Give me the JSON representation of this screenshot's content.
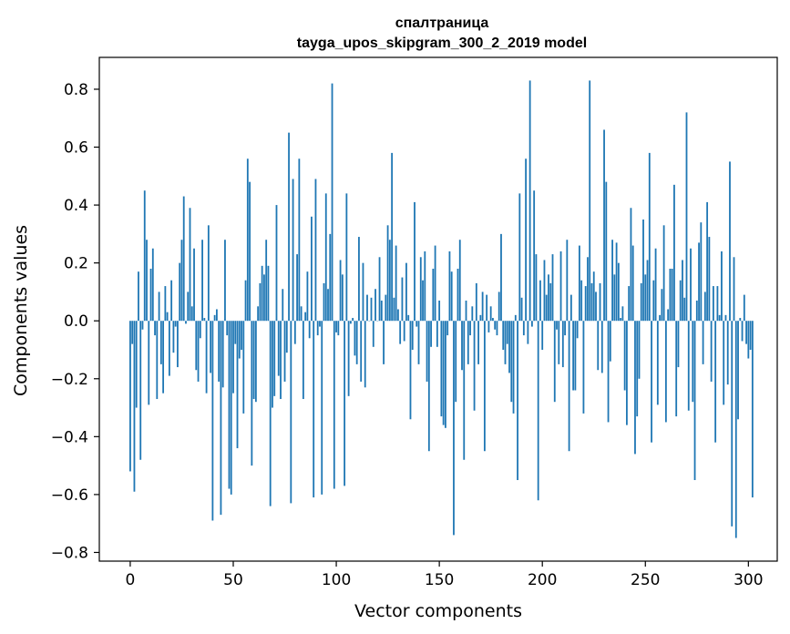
{
  "chart_data": {
    "type": "bar",
    "title_line1": "спалтраница",
    "title_line2": "tayga_upos_skipgram_300_2_2019 model",
    "xlabel": "Vector components",
    "ylabel": "Components values",
    "xlim": [
      -15,
      314
    ],
    "ylim": [
      -0.83,
      0.91
    ],
    "xticks": [
      0,
      50,
      100,
      150,
      200,
      250,
      300
    ],
    "xtick_labels": [
      "0",
      "50",
      "100",
      "150",
      "200",
      "250",
      "300"
    ],
    "yticks": [
      -0.8,
      -0.6,
      -0.4,
      -0.2,
      0.0,
      0.2,
      0.4,
      0.6,
      0.8
    ],
    "ytick_labels": [
      "−0.8",
      "−0.6",
      "−0.4",
      "−0.2",
      "0.0",
      "0.2",
      "0.4",
      "0.6",
      "0.8"
    ],
    "bar_color": "#1f77b4",
    "grid": false,
    "values": [
      -0.52,
      -0.08,
      -0.59,
      -0.3,
      0.17,
      -0.48,
      -0.03,
      0.45,
      0.28,
      -0.29,
      0.18,
      0.25,
      -0.05,
      -0.27,
      0.1,
      -0.15,
      -0.25,
      0.12,
      0.03,
      -0.19,
      0.14,
      -0.11,
      -0.02,
      -0.16,
      0.2,
      0.28,
      0.43,
      -0.01,
      0.1,
      0.39,
      0.05,
      0.25,
      -0.17,
      -0.21,
      -0.06,
      0.28,
      0.01,
      -0.25,
      0.33,
      -0.18,
      -0.69,
      0.02,
      0.04,
      -0.21,
      -0.67,
      -0.23,
      0.28,
      -0.05,
      -0.58,
      -0.6,
      -0.25,
      -0.08,
      -0.44,
      -0.13,
      -0.1,
      -0.32,
      0.14,
      0.56,
      0.48,
      -0.5,
      -0.27,
      -0.28,
      0.05,
      0.13,
      0.19,
      0.16,
      0.28,
      0.19,
      -0.64,
      -0.3,
      -0.26,
      0.4,
      -0.19,
      -0.27,
      0.11,
      -0.21,
      -0.11,
      0.65,
      -0.63,
      0.49,
      -0.08,
      0.23,
      0.56,
      0.05,
      -0.27,
      0.03,
      0.17,
      -0.06,
      0.36,
      -0.61,
      0.49,
      -0.05,
      -0.02,
      -0.6,
      0.13,
      0.44,
      0.11,
      0.3,
      0.82,
      -0.58,
      -0.04,
      -0.05,
      0.21,
      0.16,
      -0.57,
      0.44,
      -0.26,
      -0.01,
      0.01,
      -0.12,
      -0.15,
      0.29,
      -0.21,
      0.2,
      -0.23,
      0.09,
      0.0,
      0.08,
      -0.09,
      0.11,
      0.0,
      0.22,
      0.07,
      -0.15,
      0.09,
      0.33,
      0.28,
      0.58,
      0.08,
      0.26,
      0.04,
      -0.08,
      0.15,
      -0.07,
      0.2,
      0.02,
      -0.34,
      -0.1,
      0.41,
      -0.02,
      -0.15,
      0.22,
      0.14,
      0.24,
      -0.21,
      -0.45,
      -0.09,
      0.18,
      0.26,
      -0.09,
      0.07,
      -0.33,
      -0.36,
      -0.37,
      -0.05,
      0.24,
      0.17,
      -0.74,
      -0.28,
      0.18,
      0.28,
      -0.17,
      -0.48,
      0.07,
      -0.15,
      -0.05,
      0.05,
      -0.31,
      0.13,
      -0.15,
      0.02,
      0.1,
      -0.45,
      0.09,
      -0.04,
      0.05,
      0.01,
      -0.03,
      -0.05,
      0.1,
      0.3,
      -0.1,
      -0.15,
      -0.08,
      -0.18,
      -0.28,
      -0.32,
      0.02,
      -0.55,
      0.44,
      0.08,
      -0.05,
      0.56,
      -0.08,
      0.83,
      -0.02,
      0.45,
      0.23,
      -0.62,
      0.14,
      -0.1,
      0.21,
      0.09,
      0.16,
      0.13,
      0.23,
      -0.28,
      -0.03,
      -0.15,
      0.24,
      -0.16,
      -0.05,
      0.28,
      -0.45,
      0.09,
      -0.24,
      -0.24,
      -0.06,
      0.26,
      0.14,
      -0.32,
      0.12,
      0.22,
      0.83,
      0.13,
      0.17,
      0.1,
      -0.17,
      0.13,
      -0.18,
      0.66,
      0.48,
      -0.35,
      -0.14,
      0.28,
      0.16,
      0.27,
      0.2,
      0.01,
      0.05,
      -0.24,
      -0.36,
      0.12,
      0.39,
      0.26,
      -0.46,
      -0.33,
      -0.2,
      0.13,
      0.35,
      0.16,
      0.21,
      0.58,
      -0.42,
      0.14,
      0.25,
      -0.29,
      0.02,
      0.11,
      0.33,
      -0.35,
      0.04,
      0.18,
      0.18,
      0.47,
      -0.33,
      -0.16,
      0.14,
      0.21,
      0.08,
      0.72,
      -0.31,
      0.25,
      -0.28,
      -0.55,
      0.07,
      0.27,
      0.34,
      -0.15,
      0.1,
      0.41,
      0.29,
      -0.21,
      0.12,
      -0.42,
      0.12,
      0.02,
      0.24,
      -0.29,
      0.02,
      -0.22,
      0.55,
      -0.71,
      0.22,
      -0.75,
      -0.34,
      0.01,
      -0.07,
      0.09,
      -0.08,
      -0.13,
      -0.1,
      -0.61
    ]
  }
}
